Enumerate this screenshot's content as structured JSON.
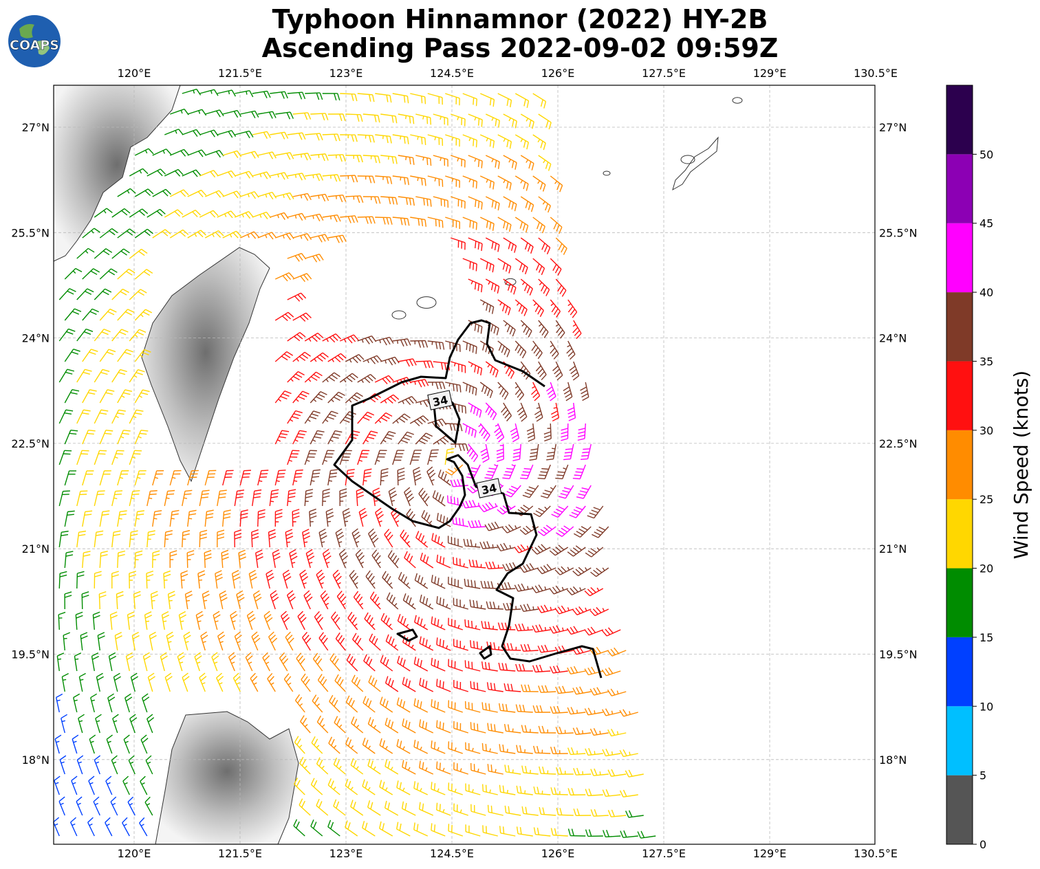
{
  "title": {
    "line1": "Typhoon Hinnamnor (2022) HY-2B",
    "line2": "Ascending Pass 2022-09-02 09:59Z"
  },
  "logo": {
    "text": "COAPS",
    "icon": "globe-logo-icon"
  },
  "map": {
    "lon_ticks": [
      "120°E",
      "121.5°E",
      "123°E",
      "124.5°E",
      "126°E",
      "127.5°E",
      "129°E",
      "130.5°E"
    ],
    "lat_ticks": [
      "27°N",
      "25.5°N",
      "24°N",
      "22.5°N",
      "21°N",
      "19.5°N",
      "18°N"
    ],
    "lon_range": [
      118.86,
      130.5
    ],
    "lat_range": [
      16.8,
      27.6
    ],
    "grid": "dashed",
    "contour_labels": [
      "34",
      "34"
    ]
  },
  "colorbar": {
    "title": "Wind Speed (knots)",
    "ticks": [
      "0",
      "5",
      "10",
      "15",
      "20",
      "25",
      "30",
      "35",
      "40",
      "45",
      "50"
    ],
    "colors": [
      "#555555",
      "#00bfff",
      "#0040ff",
      "#008c00",
      "#ffd700",
      "#ff8c00",
      "#ff1010",
      "#7f3a28",
      "#ff00ff",
      "#8c00b4",
      "#2c004e"
    ]
  },
  "chart_data": {
    "type": "wind-barb map",
    "title": "Typhoon Hinnamnor (2022) HY-2B Ascending Pass 2022-09-02 09:59Z",
    "colorbar_label": "Wind Speed (knots)",
    "bins_knots": [
      0,
      5,
      10,
      15,
      20,
      25,
      30,
      35,
      40,
      45,
      50
    ],
    "contour_level_knots": 34
  }
}
